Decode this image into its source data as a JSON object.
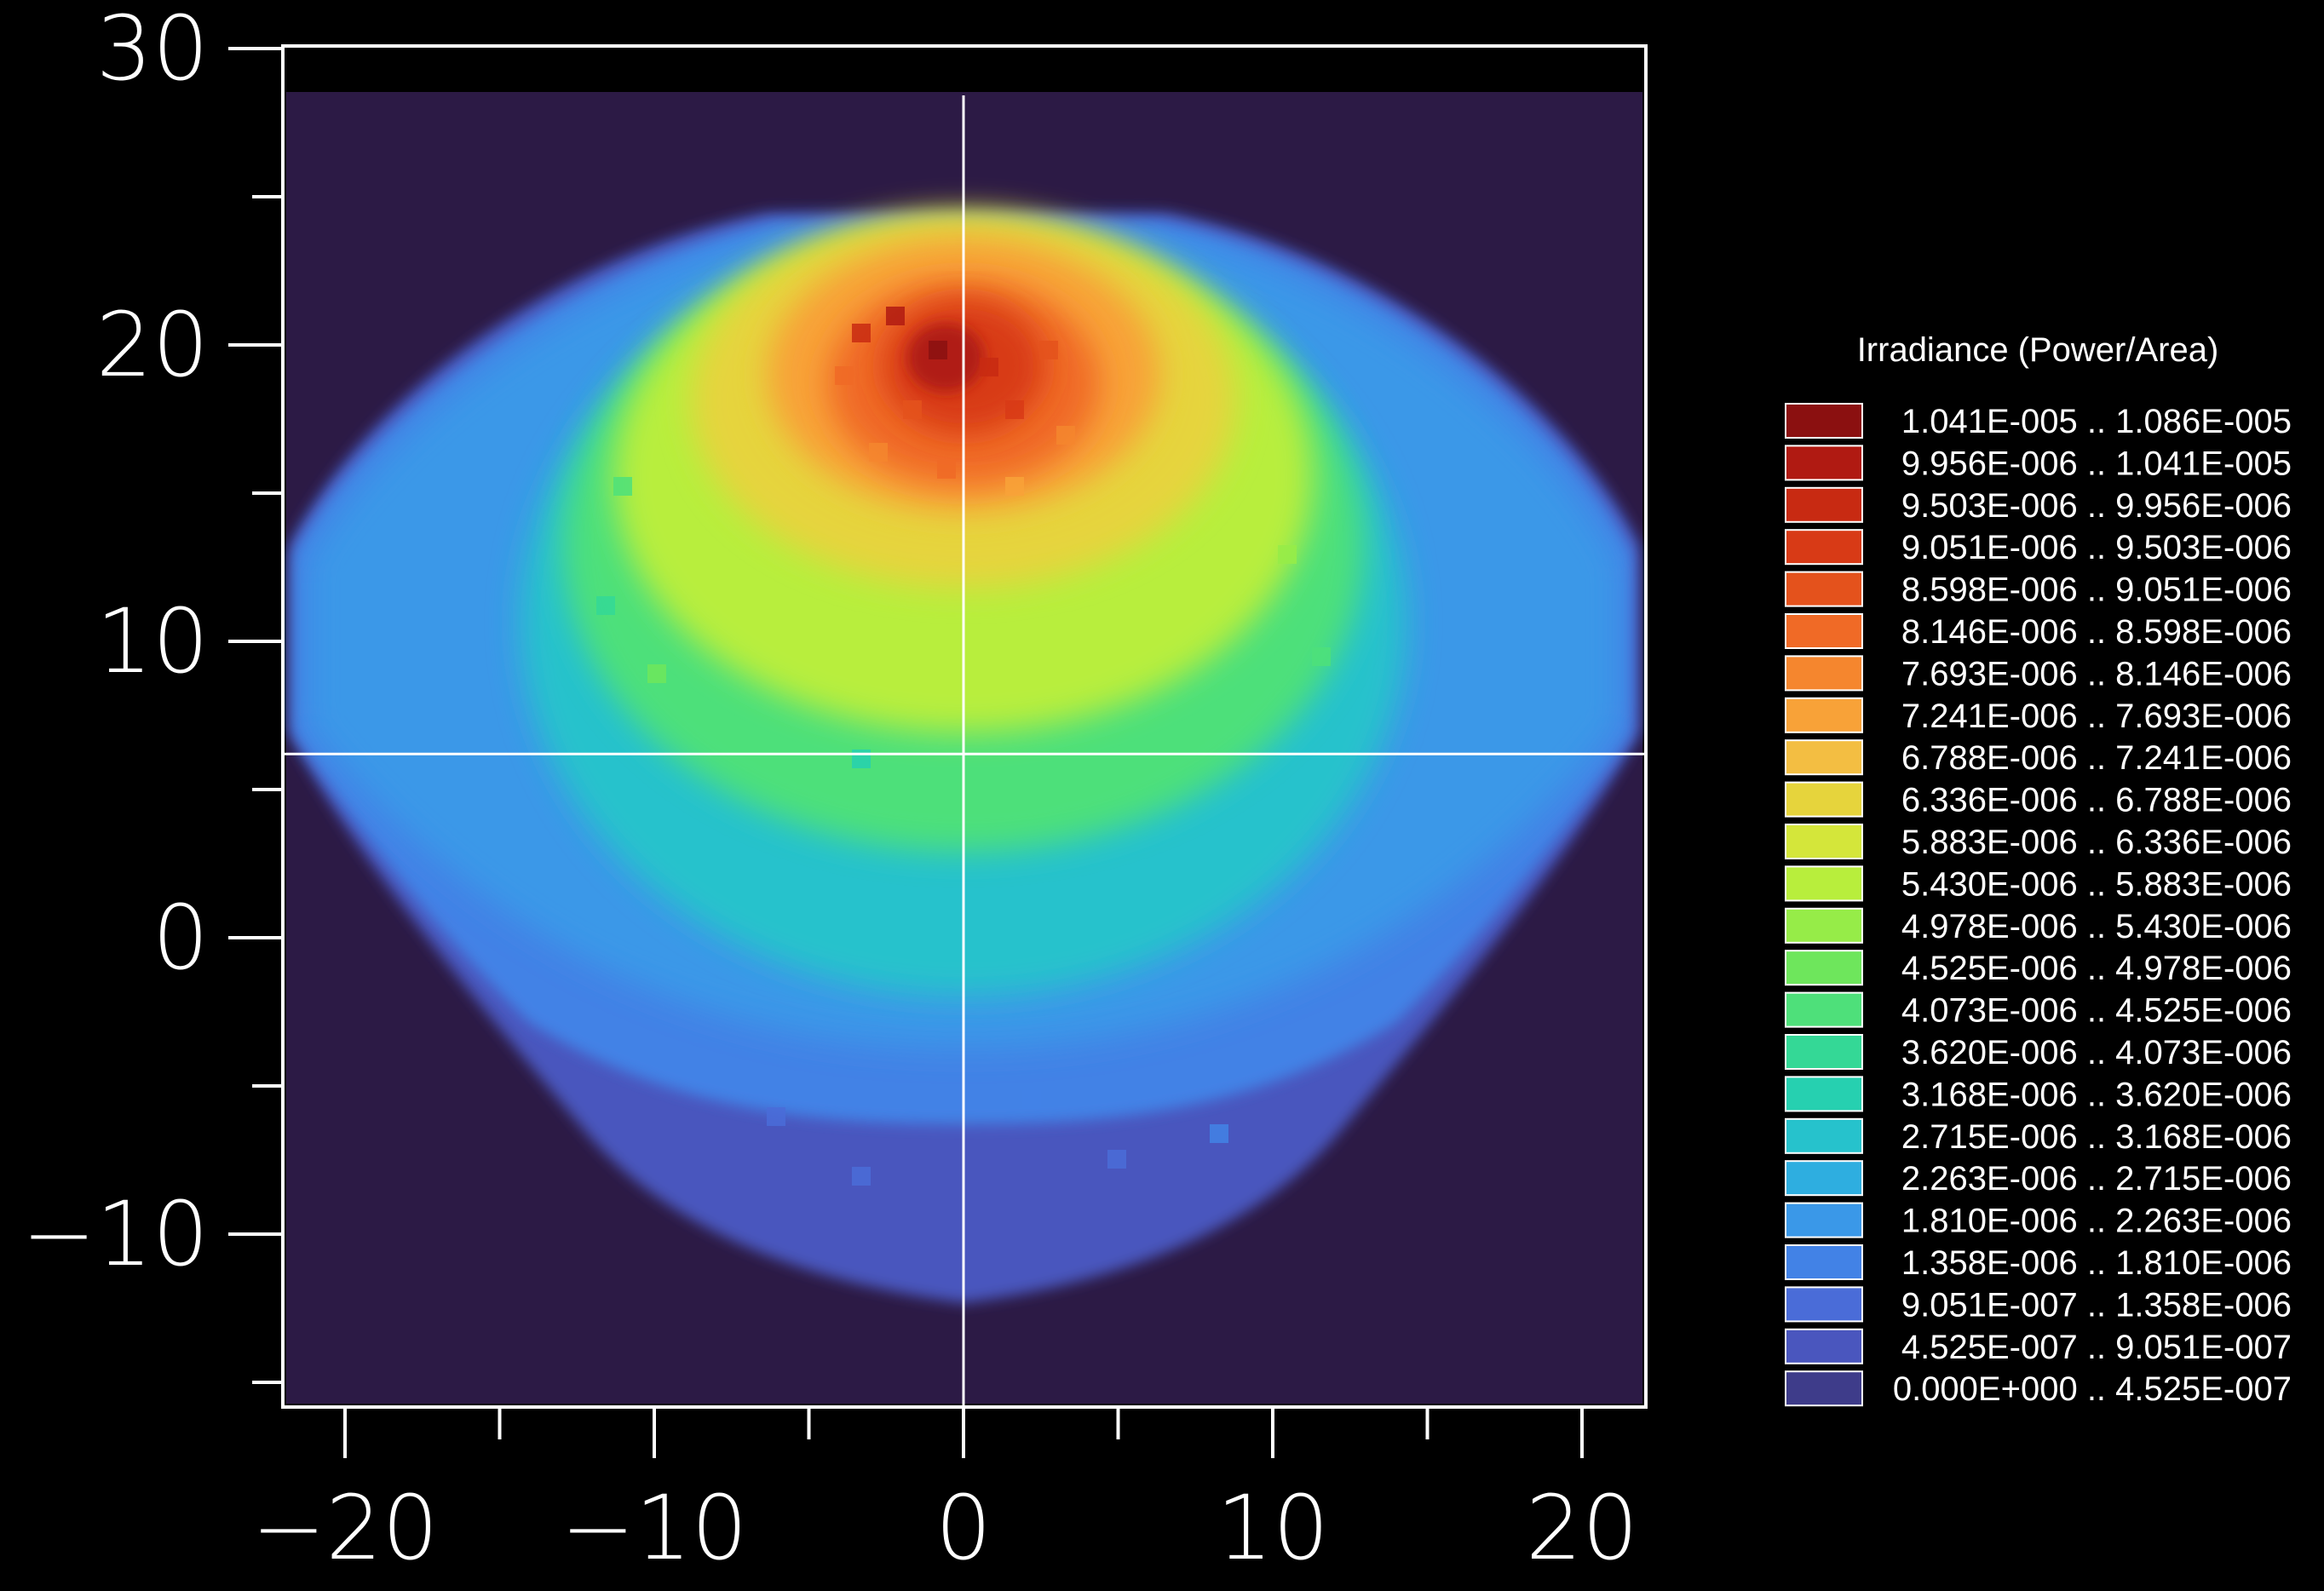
{
  "chart_data": {
    "type": "heatmap",
    "title": "",
    "xlabel": "",
    "ylabel": "",
    "xlim": [
      -22,
      22
    ],
    "ylim": [
      -16,
      30
    ],
    "x_ticks": [
      -20,
      -10,
      0,
      10,
      20
    ],
    "x_tick_labels": [
      "−20",
      "−10",
      "0",
      "10",
      "20"
    ],
    "y_ticks": [
      -10,
      0,
      10,
      20,
      30
    ],
    "y_tick_labels": [
      "−10",
      "0",
      "10",
      "20",
      "30"
    ],
    "crosshair": {
      "x": 0,
      "y": 6.2
    },
    "background_color": "#2c1a45",
    "field": {
      "description": "irradiance distribution",
      "max_location": [
        0,
        18
      ],
      "max_value": 1.086e-05
    },
    "legend": {
      "title": "Irradiance (Power/Area)",
      "placement": "right",
      "bins": [
        {
          "label": "1.041E-005 .. 1.086E-005",
          "color": "#8b1010"
        },
        {
          "label": "9.956E-006 .. 1.041E-005",
          "color": "#b01a12"
        },
        {
          "label": "9.503E-006 .. 9.956E-006",
          "color": "#c82a12"
        },
        {
          "label": "9.051E-006 .. 9.503E-006",
          "color": "#d83a16"
        },
        {
          "label": "8.598E-006 .. 9.051E-006",
          "color": "#e4521c"
        },
        {
          "label": "8.146E-006 .. 8.598E-006",
          "color": "#f06a26"
        },
        {
          "label": "7.693E-006 .. 8.146E-006",
          "color": "#f5862e"
        },
        {
          "label": "7.241E-006 .. 7.693E-006",
          "color": "#f8a238"
        },
        {
          "label": "6.788E-006 .. 7.241E-006",
          "color": "#f3be42"
        },
        {
          "label": "6.336E-006 .. 6.788E-006",
          "color": "#e6d43c"
        },
        {
          "label": "5.883E-006 .. 6.336E-006",
          "color": "#d4e63a"
        },
        {
          "label": "5.430E-006 .. 5.883E-006",
          "color": "#b8ee3c"
        },
        {
          "label": "4.978E-006 .. 5.430E-006",
          "color": "#96ec48"
        },
        {
          "label": "4.525E-006 .. 4.978E-006",
          "color": "#6ee65c"
        },
        {
          "label": "4.073E-006 .. 4.525E-006",
          "color": "#4ee07a"
        },
        {
          "label": "3.620E-006 .. 4.073E-006",
          "color": "#34d896"
        },
        {
          "label": "3.168E-006 .. 3.620E-006",
          "color": "#26d0b0"
        },
        {
          "label": "2.715E-006 .. 3.168E-006",
          "color": "#26c2cc"
        },
        {
          "label": "2.263E-006 .. 2.715E-006",
          "color": "#2eaee0"
        },
        {
          "label": "1.810E-006 .. 2.263E-006",
          "color": "#3a98e8"
        },
        {
          "label": "1.358E-006 .. 1.810E-006",
          "color": "#4282e6"
        },
        {
          "label": "9.051E-007 .. 1.358E-006",
          "color": "#4a6cd8"
        },
        {
          "label": "4.525E-007 .. 9.051E-007",
          "color": "#4a56be"
        },
        {
          "label": "0.000E+000 .. 4.525E-007",
          "color": "#3e3c8a"
        }
      ]
    }
  }
}
